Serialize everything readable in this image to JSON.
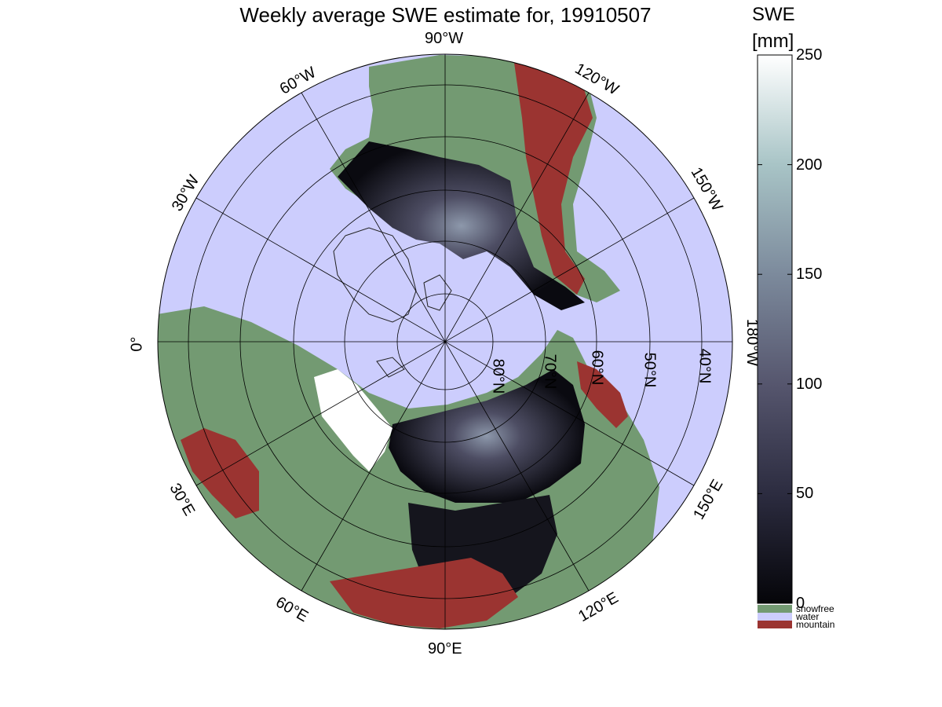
{
  "title": "Weekly average SWE estimate for, 19910507",
  "colorbar": {
    "title": "SWE",
    "unit": "[mm]",
    "range": [
      0,
      250
    ],
    "ticks": [
      {
        "value": 0,
        "label": "0"
      },
      {
        "value": 50,
        "label": "50"
      },
      {
        "value": 100,
        "label": "100"
      },
      {
        "value": 150,
        "label": "150"
      },
      {
        "value": 200,
        "label": "200"
      },
      {
        "value": 250,
        "label": "250"
      }
    ],
    "gradient_colors": [
      "#050509",
      "#2c2c40",
      "#56566e",
      "#7c8a9c",
      "#a8c4c6",
      "#ffffff"
    ]
  },
  "legend": [
    {
      "label": "snowfree",
      "color": "#739a72"
    },
    {
      "label": "water",
      "color": "#cccdfd"
    },
    {
      "label": "mountain",
      "color": "#9b3431"
    }
  ],
  "map": {
    "projection": "north polar stereographic",
    "ocean_color": "#cccdfd",
    "snowfree_color": "#739a72",
    "mountain_color": "#9b3431",
    "longitude_labels": [
      {
        "id": "90w",
        "text": "90°W"
      },
      {
        "id": "120w",
        "text": "120°W"
      },
      {
        "id": "150w",
        "text": "150°W"
      },
      {
        "id": "180w",
        "text": "180°W"
      },
      {
        "id": "150e",
        "text": "150°E"
      },
      {
        "id": "120e",
        "text": "120°E"
      },
      {
        "id": "90e",
        "text": "90°E"
      },
      {
        "id": "60e",
        "text": "60°E"
      },
      {
        "id": "30e",
        "text": "30°E"
      },
      {
        "id": "0",
        "text": "0°"
      },
      {
        "id": "30w",
        "text": "30°W"
      },
      {
        "id": "60w",
        "text": "60°W"
      }
    ],
    "latitude_labels": [
      {
        "id": "80n",
        "text": "80°N"
      },
      {
        "id": "70n",
        "text": "70°N"
      },
      {
        "id": "60n",
        "text": "60°N"
      },
      {
        "id": "50n",
        "text": "50°N"
      },
      {
        "id": "40n",
        "text": "40°N"
      }
    ]
  }
}
